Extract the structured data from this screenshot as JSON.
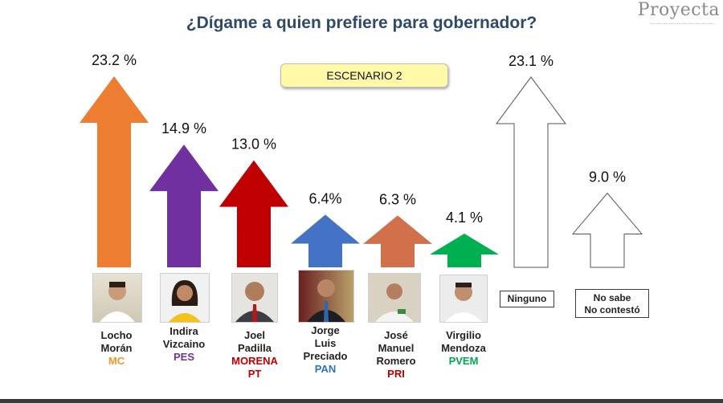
{
  "header": {
    "title": "¿Dígame a quien prefiere para gobernador?",
    "logo_text": "Proyecta",
    "scenario_label": "ESCENARIO 2"
  },
  "candidates": [
    {
      "name": "Locho\nMorán",
      "party": "MC",
      "party_color": "#f0962b"
    },
    {
      "name": "Indira\nVizcaino",
      "party": "PES",
      "party_color": "#7030a0"
    },
    {
      "name": "Joel\nPadilla",
      "party": "MORENA\nPT",
      "party_color": "#c00000"
    },
    {
      "name": "Jorge\nLuis\nPreciado",
      "party": "PAN",
      "party_color": "#2e75b6"
    },
    {
      "name": "José\nManuel\nRomero",
      "party": "PRI",
      "party_color": "#c00000"
    },
    {
      "name": "Virgilio\nMendoza",
      "party": "PVEM",
      "party_color": "#00a650"
    }
  ],
  "other_labels": {
    "ninguno": "Ninguno",
    "no_sabe": "No sabe\nNo contestó"
  },
  "chart_data": {
    "type": "bar",
    "title": "¿Dígame a quien prefiere para gobernador?",
    "categories": [
      "Locho Morán",
      "Indira Vizcaino",
      "Joel Padilla",
      "Jorge Luis Preciado",
      "José Manuel Romero",
      "Virgilio Mendoza",
      "Ninguno",
      "No sabe No contestó"
    ],
    "values": [
      23.2,
      14.9,
      13.0,
      6.4,
      6.3,
      4.1,
      23.1,
      9.0
    ],
    "labels": [
      "23.2 %",
      "14.9 %",
      "13.0 %",
      "6.4%",
      "6.3 %",
      "4.1 %",
      "23.1 %",
      "9.0 %"
    ],
    "colors": [
      "#ed7d31",
      "#7030a0",
      "#c00000",
      "#4472c4",
      "#d2704c",
      "#00b050",
      "#ffffff",
      "#ffffff"
    ],
    "ylim": [
      0,
      23.2
    ]
  }
}
